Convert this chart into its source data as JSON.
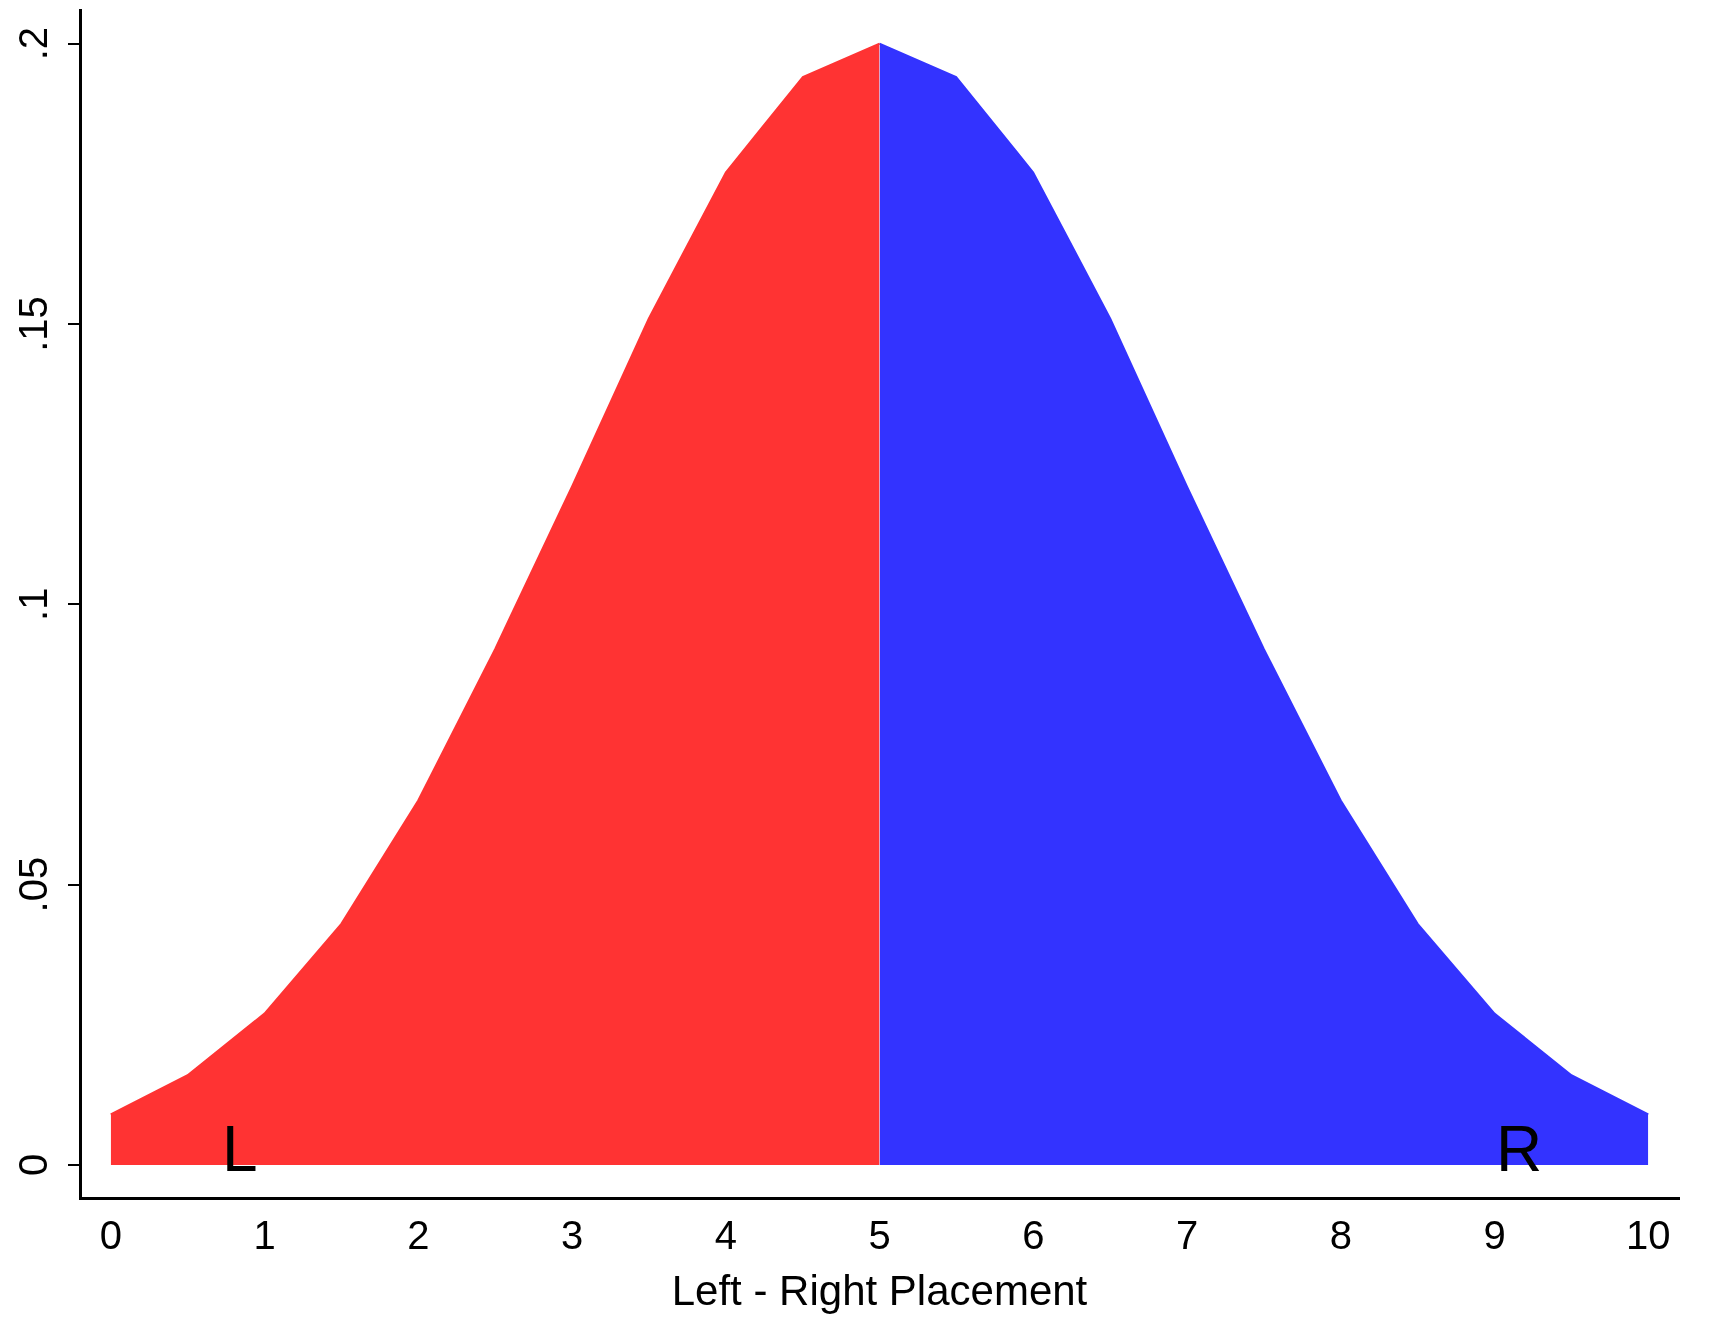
{
  "chart_data": {
    "type": "area",
    "xlabel": "Left - Right Placement",
    "series": [
      {
        "color": "#ff3333",
        "x": [
          0,
          0.5,
          1,
          1.5,
          2,
          2.5,
          3,
          3.5,
          4,
          4.5,
          5
        ],
        "values": [
          0.009,
          0.016,
          0.027,
          0.043,
          0.065,
          0.092,
          0.121,
          0.151,
          0.177,
          0.194,
          0.2
        ]
      },
      {
        "color": "#3333ff",
        "x": [
          5,
          5.5,
          6,
          6.5,
          7,
          7.5,
          8,
          8.5,
          9,
          9.5,
          10
        ],
        "values": [
          0.2,
          0.194,
          0.177,
          0.151,
          0.121,
          0.092,
          0.065,
          0.043,
          0.027,
          0.016,
          0.009
        ]
      }
    ],
    "xlim": [
      -0.2,
      10.2
    ],
    "xticks": [
      0,
      1,
      2,
      3,
      4,
      5,
      6,
      7,
      8,
      9,
      10
    ],
    "ylim": [
      -0.006,
      0.206
    ],
    "yticks": [
      0,
      {
        "value": 0.05,
        "label": ".05"
      },
      {
        "value": 0.1,
        "label": ".1"
      },
      {
        "value": 0.15,
        "label": ".15"
      },
      {
        "value": 0.2,
        "label": ".2"
      }
    ],
    "annotations": [
      "L",
      "R"
    ],
    "grid": false,
    "legend": false,
    "marker": "none",
    "line_style": "solid"
  }
}
